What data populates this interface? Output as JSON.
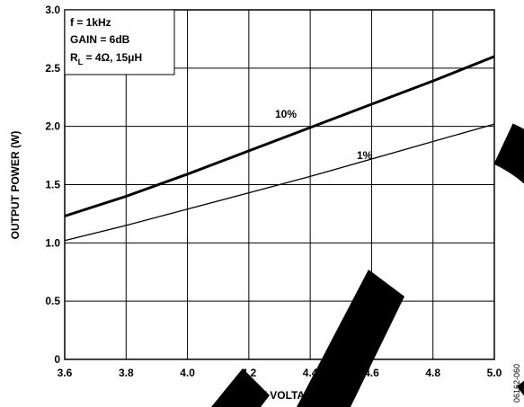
{
  "chart_data": {
    "type": "line",
    "xlabel": "SUPPLY VOLTAGE (V)",
    "ylabel": "OUTPUT POWER (W)",
    "xlim": [
      3.6,
      5.0
    ],
    "ylim": [
      0,
      3.0
    ],
    "x_ticks": [
      "3.6",
      "3.8",
      "4.0",
      "4.2",
      "4.4",
      "4.6",
      "4.8",
      "5.0"
    ],
    "y_ticks": [
      "0",
      "0.5",
      "1.0",
      "1.5",
      "2.0",
      "2.5",
      "3.0"
    ],
    "grid": true,
    "series": [
      {
        "name": "10%",
        "x": [
          3.6,
          3.8,
          4.0,
          4.2,
          4.4,
          4.6,
          4.8,
          5.0
        ],
        "y": [
          1.23,
          1.4,
          1.59,
          1.79,
          1.99,
          2.19,
          2.39,
          2.6
        ],
        "color": "#000000",
        "weight": "heavy"
      },
      {
        "name": "1%",
        "x": [
          3.6,
          3.8,
          4.0,
          4.2,
          4.4,
          4.6,
          4.8,
          5.0
        ],
        "y": [
          1.02,
          1.15,
          1.29,
          1.43,
          1.57,
          1.72,
          1.87,
          2.02
        ],
        "color": "#000000",
        "weight": "light"
      }
    ],
    "annotations": [
      "f = 1kHz",
      "GAIN = 6dB",
      "R",
      "L",
      " = 4Ω, 15μH"
    ],
    "figure_id": "06162-060"
  }
}
